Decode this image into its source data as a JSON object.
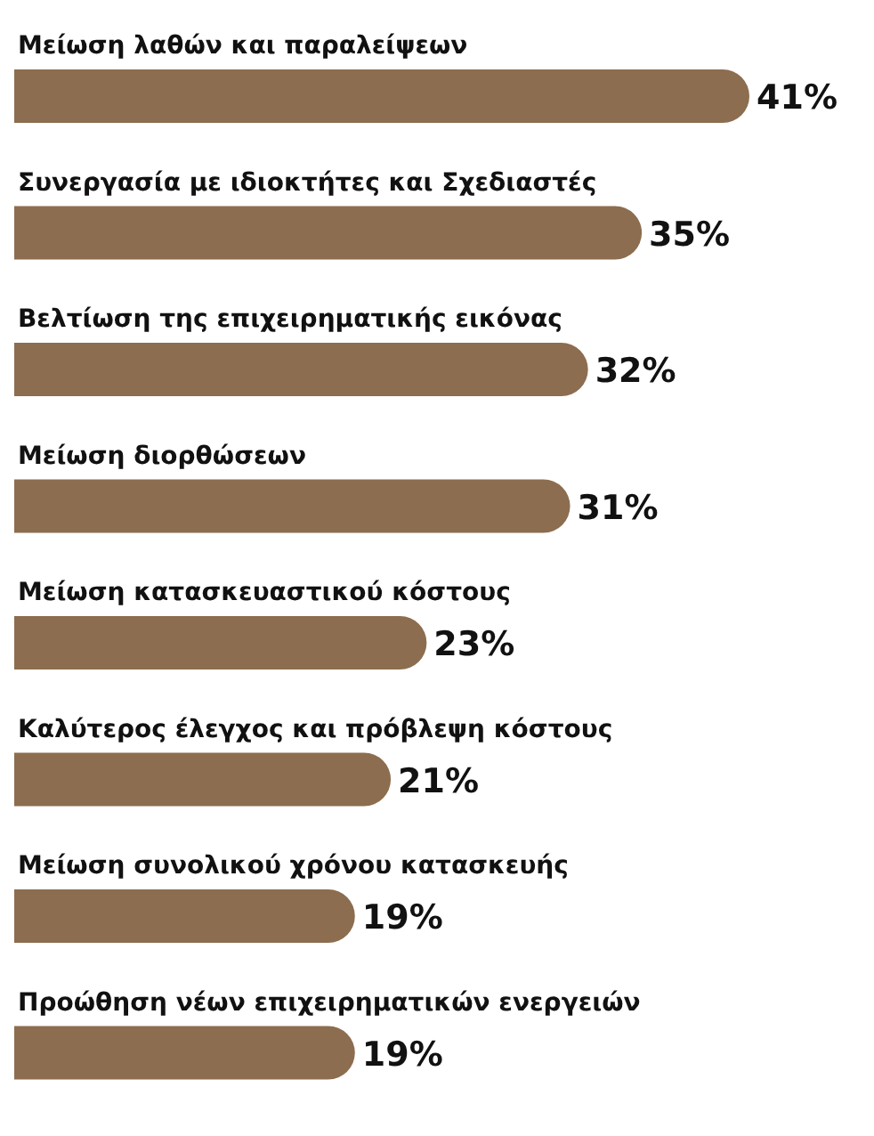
{
  "chart_data": {
    "type": "bar",
    "orientation": "horizontal",
    "categories": [
      "Μείωση λαθών και παραλείψεων",
      "Συνεργασία με ιδιοκτήτες και Σχεδιαστές",
      "Βελτίωση της επιχειρηματικής εικόνας",
      "Μείωση διορθώσεων",
      "Μείωση κατασκευαστικού κόστους",
      "Καλύτερος έλεγχος και πρόβλεψη κόστους",
      "Μείωση συνολικού χρόνου κατασκευής",
      "Προώθηση νέων επιχειρηματικών ενεργειών"
    ],
    "values": [
      41,
      35,
      32,
      31,
      23,
      21,
      19,
      19
    ],
    "value_labels": [
      "41%",
      "35%",
      "32%",
      "31%",
      "23%",
      "21%",
      "19%",
      "19%"
    ],
    "color": "#8c6d4f",
    "grid": false,
    "legend": false,
    "tick_labels": false
  }
}
